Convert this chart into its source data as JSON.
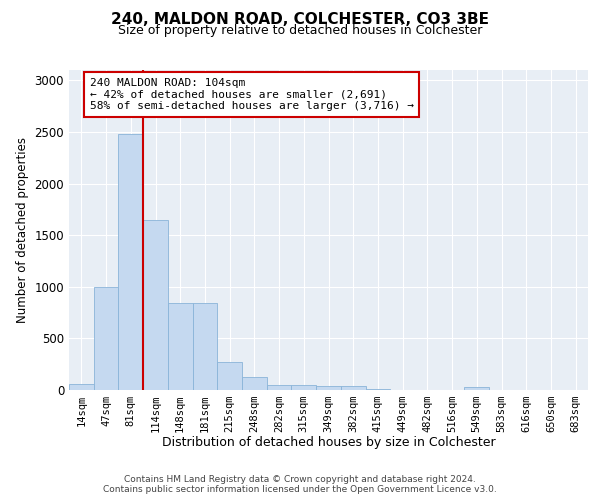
{
  "title1": "240, MALDON ROAD, COLCHESTER, CO3 3BE",
  "title2": "Size of property relative to detached houses in Colchester",
  "xlabel": "Distribution of detached houses by size in Colchester",
  "ylabel": "Number of detached properties",
  "categories": [
    "14sqm",
    "47sqm",
    "81sqm",
    "114sqm",
    "148sqm",
    "181sqm",
    "215sqm",
    "248sqm",
    "282sqm",
    "315sqm",
    "349sqm",
    "382sqm",
    "415sqm",
    "449sqm",
    "482sqm",
    "516sqm",
    "549sqm",
    "583sqm",
    "616sqm",
    "650sqm",
    "683sqm"
  ],
  "values": [
    55,
    1000,
    2480,
    1650,
    840,
    840,
    270,
    130,
    50,
    50,
    40,
    35,
    5,
    0,
    0,
    0,
    30,
    0,
    0,
    0,
    0
  ],
  "bar_color": "#c5d9f0",
  "bar_edge_color": "#8ab4d8",
  "background_color": "#e8eef5",
  "vline_color": "#cc0000",
  "vline_pos": 2.5,
  "annotation_text": "240 MALDON ROAD: 104sqm\n← 42% of detached houses are smaller (2,691)\n58% of semi-detached houses are larger (3,716) →",
  "ylim": [
    0,
    3100
  ],
  "yticks": [
    0,
    500,
    1000,
    1500,
    2000,
    2500,
    3000
  ],
  "footer1": "Contains HM Land Registry data © Crown copyright and database right 2024.",
  "footer2": "Contains public sector information licensed under the Open Government Licence v3.0."
}
